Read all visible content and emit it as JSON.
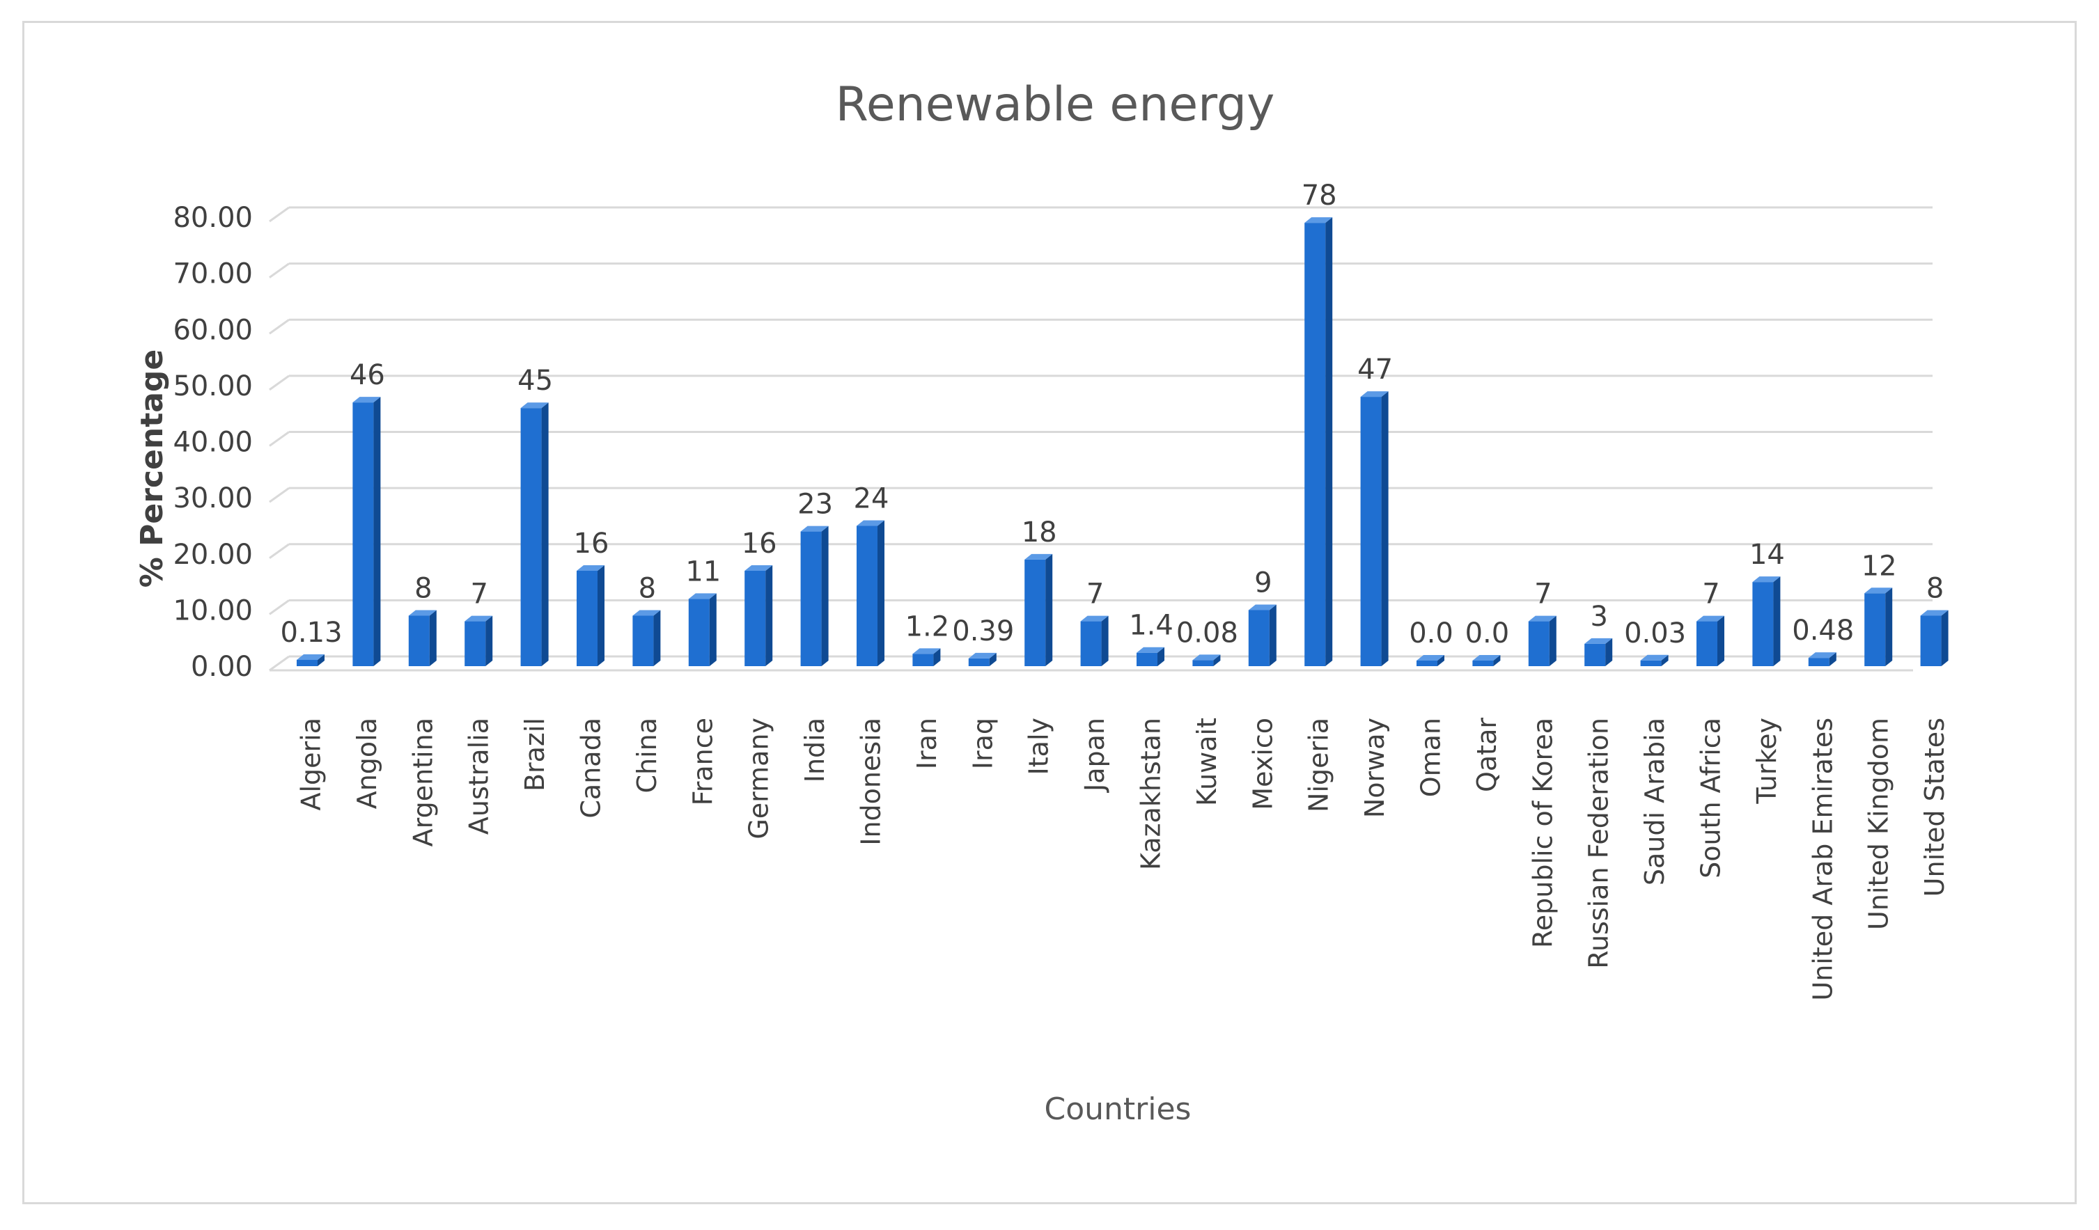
{
  "chart_data": {
    "type": "bar",
    "title": "Renewable energy",
    "xlabel": "Countries",
    "ylabel": "% Percentage",
    "ylim": [
      0,
      80
    ],
    "yticks": [
      "0.00",
      "10.00",
      "20.00",
      "30.00",
      "40.00",
      "50.00",
      "60.00",
      "70.00",
      "80.00"
    ],
    "grid": true,
    "colors": {
      "bar": "#1f6fd1",
      "bar_side": "#0f4a93",
      "bar_top": "#5b9ae6",
      "grid": "#d9d9d9",
      "text": "#404040"
    },
    "categories": [
      "Algeria",
      "Angola",
      "Argentina",
      "Australia",
      "Brazil",
      "Canada",
      "China",
      "France",
      "Germany",
      "India",
      "Indonesia",
      "Iran",
      "Iraq",
      "Italy",
      "Japan",
      "Kazakhstan",
      "Kuwait",
      "Mexico",
      "Nigeria",
      "Norway",
      "Oman",
      "Qatar",
      "Republic of Korea",
      "Russian Federation",
      "Saudi Arabia",
      "South Africa",
      "Turkey",
      "United Arab Emirates",
      "United Kingdom",
      "United States"
    ],
    "values": [
      0.13,
      46,
      8,
      7,
      45,
      16,
      8,
      11,
      16,
      23,
      24,
      1.2,
      0.39,
      18,
      7,
      1.4,
      0.08,
      9,
      78,
      47,
      0.0,
      0.0,
      7,
      3,
      0.03,
      7,
      14,
      0.48,
      12,
      8
    ],
    "data_labels": [
      "0.13",
      "46",
      "8",
      "7",
      "45",
      "16",
      "8",
      "11",
      "16",
      "23",
      "24",
      "1.2",
      "0.39",
      "18",
      "7",
      "1.4",
      "0.08",
      "9",
      "78",
      "47",
      "0.0",
      "0.0",
      "7",
      "3",
      "0.03",
      "7",
      "14",
      "0.48",
      "12",
      "8"
    ]
  }
}
